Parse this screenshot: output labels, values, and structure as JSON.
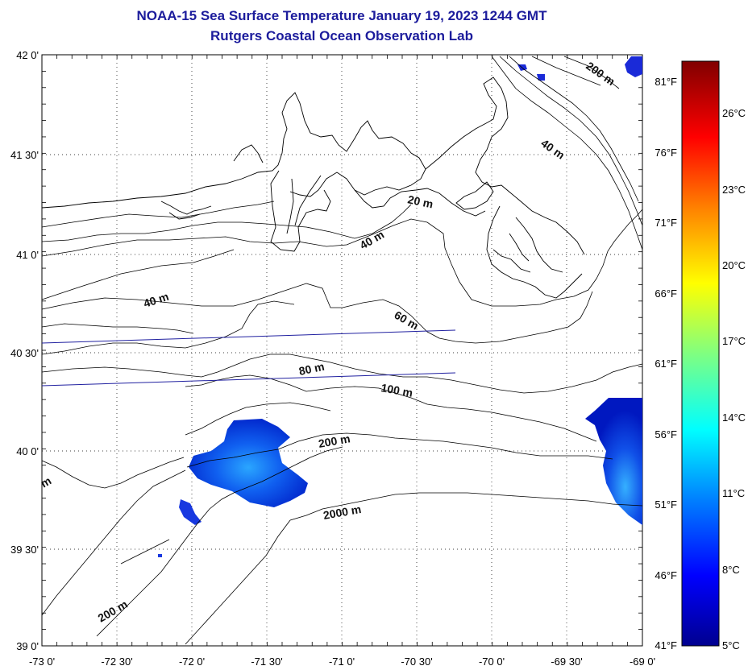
{
  "title": "NOAA-15 Sea Surface Temperature January 19, 2023 1244 GMT",
  "subtitle": "Rutgers Coastal Ocean Observation Lab",
  "map": {
    "lon_range": [
      -73.0,
      -69.0
    ],
    "lat_range": [
      39.0,
      42.0
    ],
    "grid": "dotted",
    "lat_labels": [
      "42 0'",
      "41 30'",
      "41 0'",
      "40 30'",
      "40 0'",
      "39 30'",
      "39 0'"
    ],
    "lon_labels": [
      "-73 0'",
      "-72 30'",
      "-72 0'",
      "-71 30'",
      "-71 0'",
      "-70 30'",
      "-70 0'",
      "-69 30'",
      "-69 0'"
    ],
    "contour_labels": [
      {
        "text": "200 m"
      },
      {
        "text": "40 m"
      },
      {
        "text": "20 m"
      },
      {
        "text": "40 m"
      },
      {
        "text": "40 m"
      },
      {
        "text": "60 m"
      },
      {
        "text": "80 m"
      },
      {
        "text": "100 m"
      },
      {
        "text": "200 m"
      },
      {
        "text": "2000 m"
      },
      {
        "text": "200 m"
      },
      {
        "text": "m"
      }
    ]
  },
  "colorbar": {
    "fahrenheit_labels": [
      "81°F",
      "76°F",
      "71°F",
      "66°F",
      "61°F",
      "56°F",
      "51°F",
      "46°F",
      "41°F"
    ],
    "celsius_labels": [
      "26°C",
      "23°C",
      "20°C",
      "17°C",
      "14°C",
      "11°C",
      "8°C",
      "5°C"
    ],
    "colors": [
      "#00008f",
      "#0000ff",
      "#0080ff",
      "#00ffff",
      "#80ff80",
      "#ffff00",
      "#ff8000",
      "#ff0000",
      "#800000"
    ]
  }
}
